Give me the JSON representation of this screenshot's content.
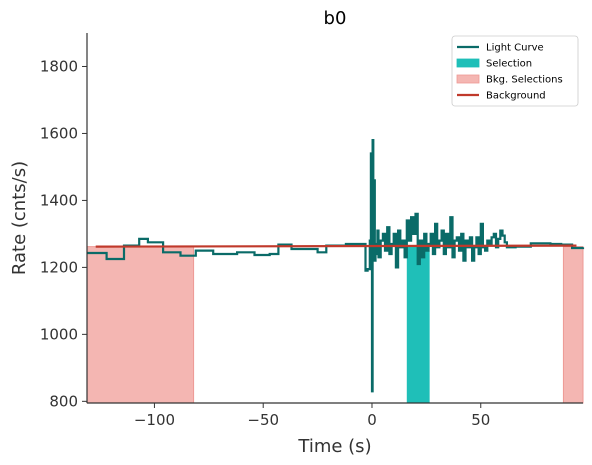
{
  "chart_data": {
    "type": "line",
    "title": "b0",
    "xlabel": "Time (s)",
    "ylabel": "Rate (cnts/s)",
    "xlim": [
      -131,
      97
    ],
    "ylim": [
      795,
      1900
    ],
    "xticks": [
      -100,
      -50,
      0,
      50
    ],
    "yticks": [
      800,
      1000,
      1200,
      1400,
      1600,
      1800
    ],
    "xtick_labels": [
      "−100",
      "−50",
      "0",
      "50"
    ],
    "ytick_labels": [
      "800",
      "1000",
      "1200",
      "1400",
      "1600",
      "1800"
    ],
    "grid": false,
    "legend_position": "top-right",
    "legend": [
      {
        "label": "Light Curve",
        "kind": "line",
        "color": "#0a6b68"
      },
      {
        "label": "Selection",
        "kind": "patch",
        "color": "#1fbfb8"
      },
      {
        "label": "Bkg. Selections",
        "kind": "patch",
        "color": "#f4b6b2"
      },
      {
        "label": "Background",
        "kind": "line",
        "color": "#c0392b"
      }
    ],
    "bkg_selections": [
      {
        "x0": -131,
        "x1": -82,
        "height": 1262
      },
      {
        "x0": 88,
        "x1": 97,
        "height": 1262
      }
    ],
    "selection": {
      "x0": 16,
      "x1": 26.5,
      "height": 1265
    },
    "background": {
      "x0": -127,
      "x1": 94,
      "y0": 1262,
      "y1": 1265
    },
    "light_curve": {
      "coarse_x": [
        -131,
        -128,
        -122,
        -114,
        -107,
        -103,
        -96,
        -88,
        -81,
        -73,
        -62,
        -54,
        -47,
        -43,
        -37,
        -31,
        -25,
        -21,
        -12,
        -3
      ],
      "coarse_y": [
        1243,
        1243,
        1225,
        1265,
        1285,
        1275,
        1245,
        1235,
        1250,
        1240,
        1245,
        1237,
        1240,
        1268,
        1255,
        1255,
        1245,
        1265,
        1270,
        1265
      ],
      "dense_x": [
        -3,
        -2,
        -1,
        -0.5,
        0,
        0.3,
        0.6,
        1,
        1.3,
        1.6,
        2,
        2.5,
        3,
        4,
        5,
        6,
        7,
        8,
        9,
        10,
        11,
        12,
        13,
        14,
        15,
        16,
        17,
        18,
        19,
        20,
        21,
        22,
        23,
        24,
        25,
        26,
        27,
        28,
        29,
        30,
        31,
        32,
        33,
        34,
        35,
        36,
        37,
        38,
        39,
        40,
        41,
        42,
        43,
        44,
        45,
        46,
        47,
        48,
        49,
        50,
        51,
        52,
        53,
        54,
        55,
        56,
        57,
        58,
        59,
        60,
        61,
        62
      ],
      "dense_y": [
        1190,
        1195,
        1280,
        1540,
        830,
        1580,
        1250,
        1460,
        1220,
        1270,
        1240,
        1310,
        1230,
        1280,
        1300,
        1250,
        1320,
        1240,
        1270,
        1300,
        1200,
        1310,
        1260,
        1280,
        1230,
        1340,
        1280,
        1350,
        1300,
        1360,
        1210,
        1280,
        1230,
        1300,
        1250,
        1270,
        1300,
        1240,
        1330,
        1260,
        1280,
        1310,
        1240,
        1300,
        1260,
        1350,
        1230,
        1280,
        1290,
        1250,
        1300,
        1220,
        1280,
        1260,
        1290,
        1220,
        1260,
        1290,
        1240,
        1330,
        1260,
        1250,
        1280,
        1270,
        1290,
        1300,
        1260,
        1285,
        1310,
        1295,
        1275,
        1260
      ],
      "tail_x": [
        62,
        66,
        73,
        82,
        87,
        92,
        97
      ],
      "tail_y": [
        1262,
        1262,
        1272,
        1270,
        1268,
        1258,
        1260
      ]
    }
  }
}
